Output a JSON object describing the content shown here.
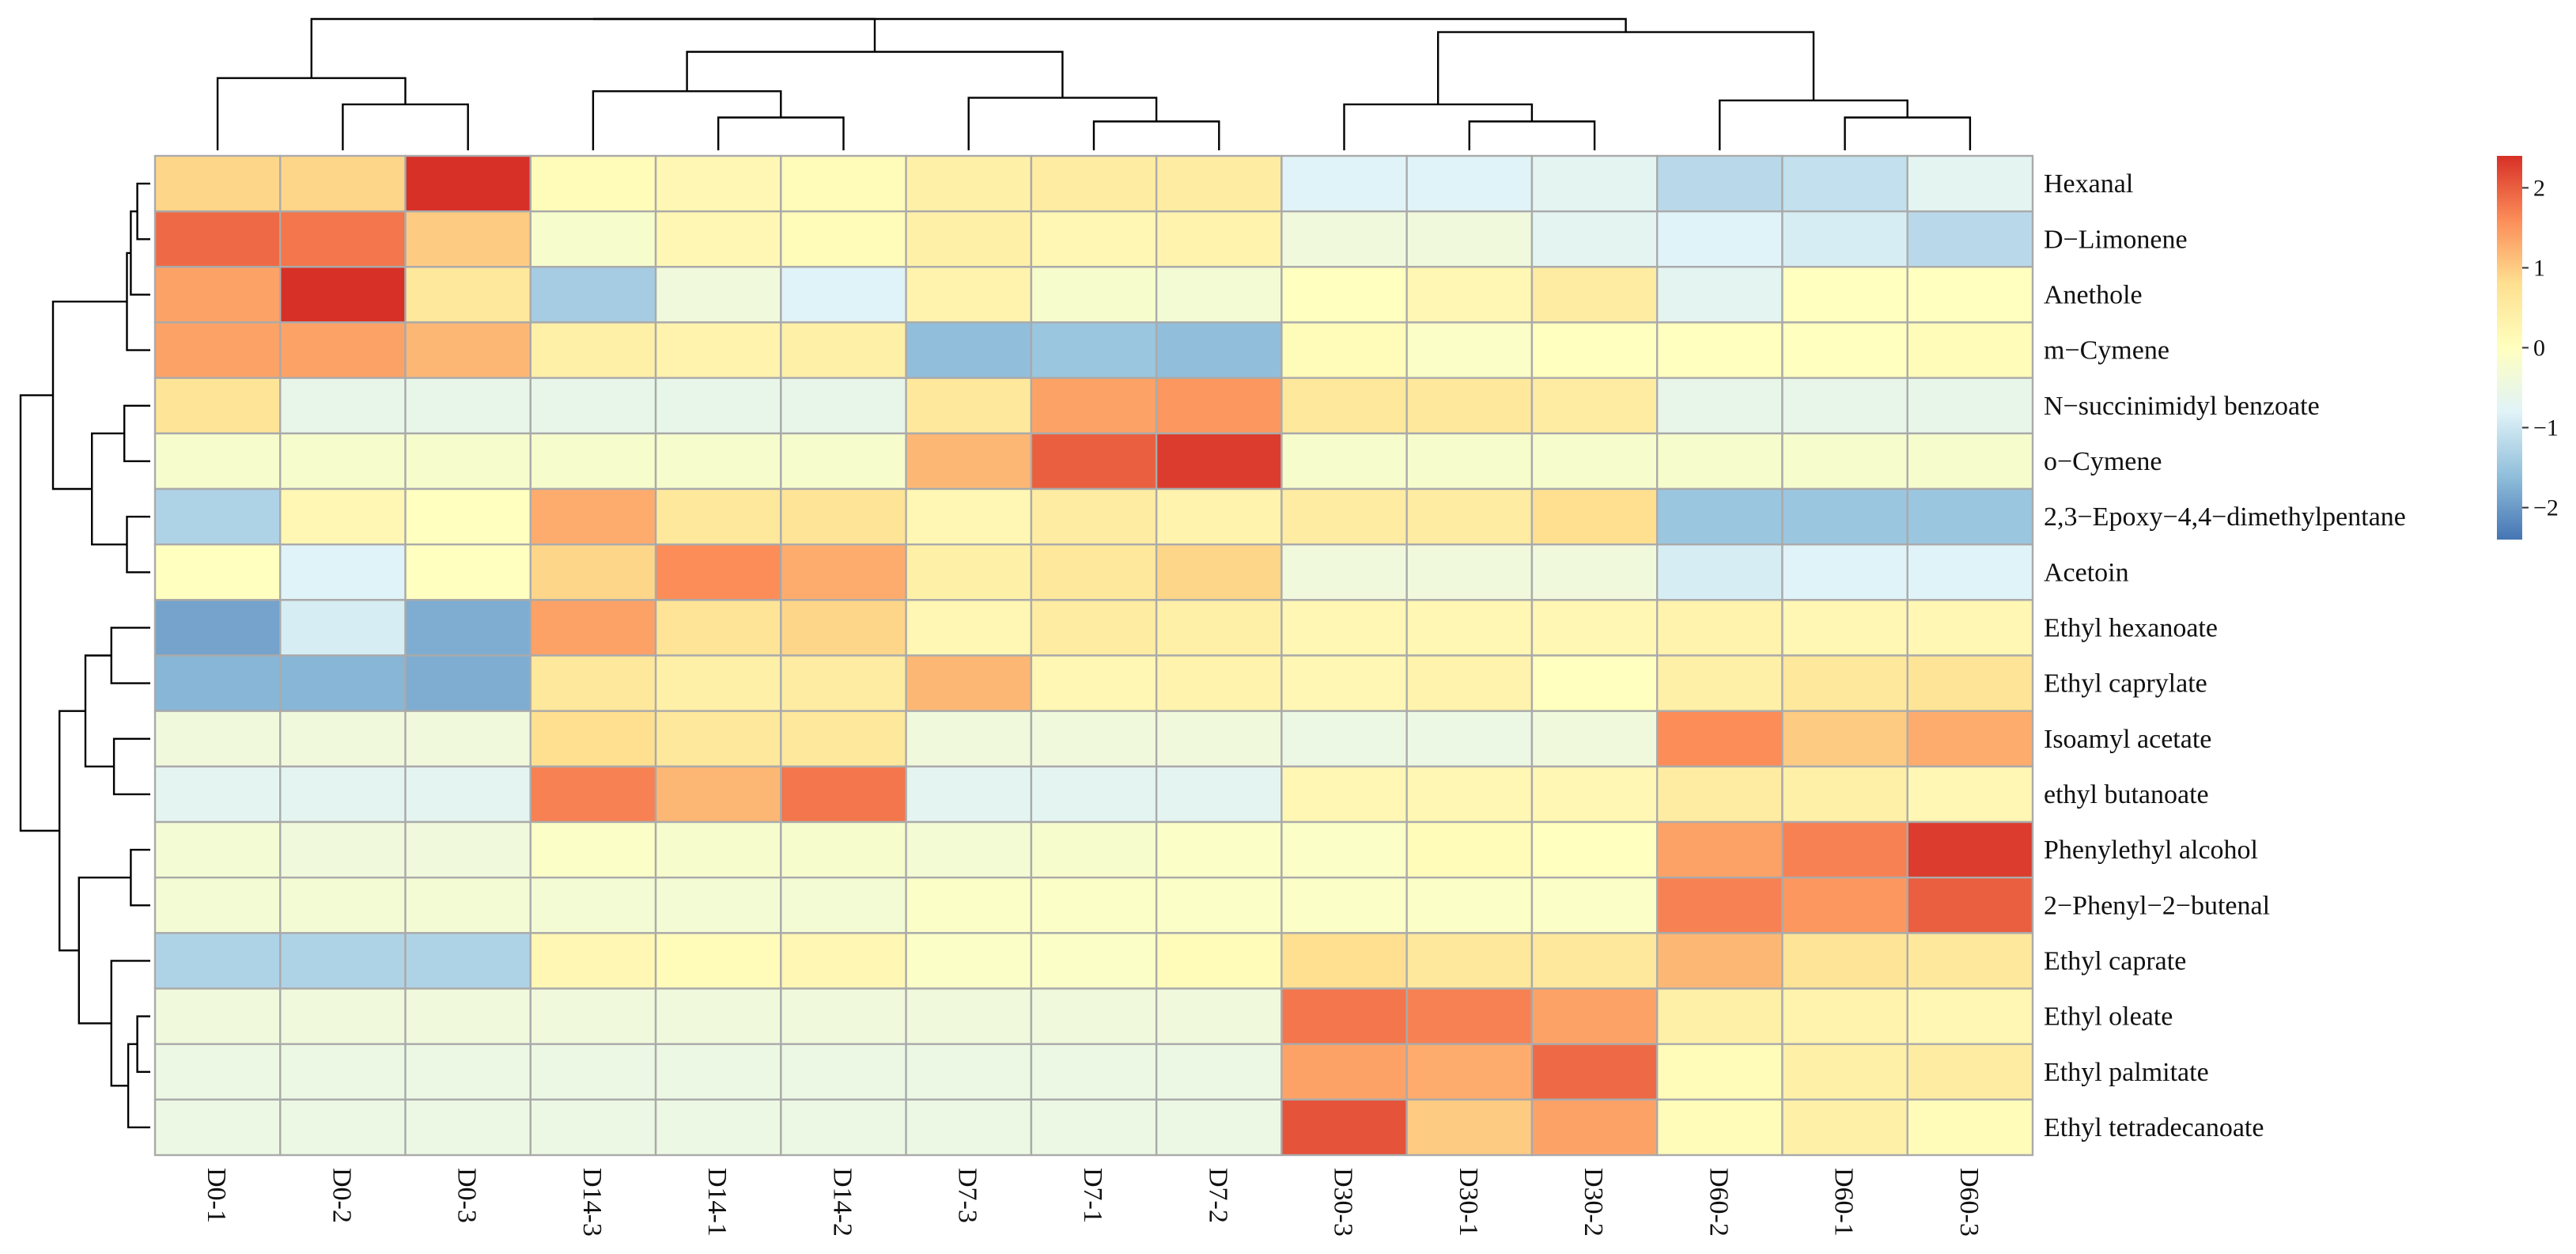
{
  "chart_data": {
    "type": "heatmap",
    "title": "",
    "xlabel": "",
    "ylabel": "",
    "columns": [
      "D0-1",
      "D0-2",
      "D0-3",
      "D14-3",
      "D14-1",
      "D14-2",
      "D7-3",
      "D7-1",
      "D7-2",
      "D30-3",
      "D30-1",
      "D30-2",
      "D60-2",
      "D60-1",
      "D60-3"
    ],
    "rows": [
      "Hexanal",
      "D−Limonene",
      "Anethole",
      "m−Cymene",
      "N−succinimidyl benzoate",
      "o−Cymene",
      "2,3−Epoxy−4,4−dimethylpentane",
      "Acetoin",
      "Ethyl hexanoate",
      "Ethyl caprylate",
      "Isoamyl acetate",
      "ethyl butanoate",
      "Phenylethyl alcohol",
      "2−Phenyl−2−butenal",
      "Ethyl caprate",
      "Ethyl oleate",
      "Ethyl palmitate",
      "Ethyl tetradecanoate"
    ],
    "values": [
      [
        0.9,
        0.9,
        2.4,
        0.1,
        0.2,
        0.1,
        0.4,
        0.5,
        0.5,
        -0.8,
        -0.8,
        -0.7,
        -1.2,
        -1.1,
        -0.7
      ],
      [
        1.9,
        1.8,
        1.0,
        -0.2,
        0.2,
        0.1,
        0.4,
        0.2,
        0.3,
        -0.4,
        -0.4,
        -0.7,
        -0.8,
        -0.9,
        -1.2
      ],
      [
        1.4,
        2.4,
        0.6,
        -1.4,
        -0.4,
        -0.8,
        0.3,
        -0.2,
        -0.3,
        0.0,
        0.2,
        0.5,
        -0.7,
        0.0,
        0.0
      ],
      [
        1.4,
        1.4,
        1.2,
        0.4,
        0.3,
        0.4,
        -1.6,
        -1.5,
        -1.6,
        0.1,
        -0.1,
        0.0,
        0.0,
        0.0,
        0.1
      ],
      [
        0.7,
        -0.6,
        -0.6,
        -0.6,
        -0.6,
        -0.6,
        0.6,
        1.4,
        1.5,
        0.6,
        0.6,
        0.5,
        -0.6,
        -0.6,
        -0.6
      ],
      [
        -0.2,
        -0.2,
        -0.2,
        -0.2,
        -0.2,
        -0.2,
        1.2,
        2.0,
        2.3,
        -0.2,
        -0.2,
        -0.2,
        -0.2,
        -0.2,
        -0.2
      ],
      [
        -1.3,
        0.2,
        0.0,
        1.3,
        0.6,
        0.7,
        0.2,
        0.5,
        0.3,
        0.5,
        0.5,
        0.8,
        -1.5,
        -1.5,
        -1.5
      ],
      [
        0.0,
        -0.8,
        0.0,
        0.9,
        1.6,
        1.3,
        0.4,
        0.6,
        0.9,
        -0.4,
        -0.4,
        -0.4,
        -0.9,
        -0.8,
        -0.8
      ],
      [
        -1.9,
        -0.9,
        -1.8,
        1.4,
        0.7,
        0.9,
        0.2,
        0.5,
        0.4,
        0.2,
        0.2,
        0.2,
        0.3,
        0.2,
        0.2
      ],
      [
        -1.7,
        -1.7,
        -1.8,
        0.6,
        0.4,
        0.5,
        1.2,
        0.2,
        0.3,
        0.2,
        0.3,
        0.0,
        0.4,
        0.6,
        0.7
      ],
      [
        -0.4,
        -0.4,
        -0.4,
        0.8,
        0.6,
        0.6,
        -0.4,
        -0.4,
        -0.4,
        -0.5,
        -0.5,
        -0.4,
        1.6,
        1.0,
        1.3
      ],
      [
        -0.7,
        -0.7,
        -0.7,
        1.7,
        1.2,
        1.8,
        -0.7,
        -0.7,
        -0.7,
        0.2,
        0.2,
        0.2,
        0.5,
        0.4,
        0.2
      ],
      [
        -0.3,
        -0.4,
        -0.4,
        -0.1,
        -0.2,
        -0.2,
        -0.3,
        -0.2,
        -0.1,
        -0.1,
        0.1,
        0.0,
        1.4,
        1.7,
        2.3
      ],
      [
        -0.3,
        -0.3,
        -0.3,
        -0.3,
        -0.3,
        -0.3,
        -0.1,
        -0.1,
        -0.1,
        -0.1,
        -0.1,
        -0.1,
        1.7,
        1.5,
        2.0
      ],
      [
        -1.3,
        -1.3,
        -1.3,
        0.2,
        0.1,
        0.2,
        -0.1,
        -0.1,
        0.1,
        0.8,
        0.6,
        0.6,
        1.2,
        0.7,
        0.6
      ],
      [
        -0.4,
        -0.4,
        -0.4,
        -0.4,
        -0.4,
        -0.4,
        -0.4,
        -0.4,
        -0.4,
        1.8,
        1.7,
        1.4,
        0.4,
        0.3,
        0.2
      ],
      [
        -0.5,
        -0.5,
        -0.5,
        -0.5,
        -0.5,
        -0.5,
        -0.5,
        -0.5,
        -0.5,
        1.4,
        1.3,
        1.9,
        0.1,
        0.4,
        0.5
      ],
      [
        -0.5,
        -0.5,
        -0.5,
        -0.5,
        -0.5,
        -0.5,
        -0.5,
        -0.5,
        -0.5,
        2.1,
        1.0,
        1.4,
        0.1,
        0.4,
        0.1
      ]
    ],
    "value_range": [
      -2.4,
      2.4
    ],
    "colorbar": {
      "ticks": [
        "2",
        "1",
        "0",
        "−1",
        "−2"
      ],
      "tick_values": [
        2,
        1,
        0,
        -1,
        -2
      ],
      "colors": [
        "#4575b4",
        "#91bfdb",
        "#e0f3f8",
        "#ffffbf",
        "#fee090",
        "#fc8d59",
        "#d73027"
      ]
    },
    "cell_border_color": "#aaaaaa",
    "column_dendrogram": {
      "leaf_order": [
        0,
        1,
        2,
        3,
        4,
        5,
        6,
        7,
        8,
        9,
        10,
        11,
        12,
        13,
        14
      ],
      "merges": [
        [
          1,
          2,
          0.35
        ],
        [
          0,
          -1,
          0.55
        ],
        [
          4,
          5,
          0.25
        ],
        [
          -3,
          3,
          0.45
        ],
        [
          7,
          8,
          0.22
        ],
        [
          6,
          -5,
          0.4
        ],
        [
          -4,
          -6,
          0.75
        ],
        [
          -7,
          -2,
          1.0
        ],
        [
          10,
          11,
          0.22
        ],
        [
          9,
          -9,
          0.35
        ],
        [
          13,
          14,
          0.25
        ],
        [
          12,
          -11,
          0.38
        ],
        [
          -10,
          -12,
          0.9
        ],
        [
          -8,
          -13,
          1.0
        ]
      ]
    },
    "row_dendrogram": {
      "leaf_order": [
        0,
        1,
        2,
        3,
        4,
        5,
        6,
        7,
        8,
        9,
        10,
        11,
        12,
        13,
        14,
        15,
        16,
        17
      ],
      "merges": [
        [
          0,
          1,
          0.1
        ],
        [
          -1,
          2,
          0.15
        ],
        [
          -2,
          3,
          0.18
        ],
        [
          4,
          5,
          0.2
        ],
        [
          6,
          7,
          0.18
        ],
        [
          -4,
          -5,
          0.45
        ],
        [
          -3,
          -6,
          0.75
        ],
        [
          8,
          9,
          0.3
        ],
        [
          10,
          11,
          0.28
        ],
        [
          -8,
          -9,
          0.5
        ],
        [
          12,
          13,
          0.15
        ],
        [
          15,
          16,
          0.1
        ],
        [
          -12,
          17,
          0.17
        ],
        [
          14,
          -13,
          0.3
        ],
        [
          -11,
          -14,
          0.55
        ],
        [
          -10,
          -15,
          0.7
        ],
        [
          -7,
          -16,
          1.0
        ]
      ]
    }
  }
}
